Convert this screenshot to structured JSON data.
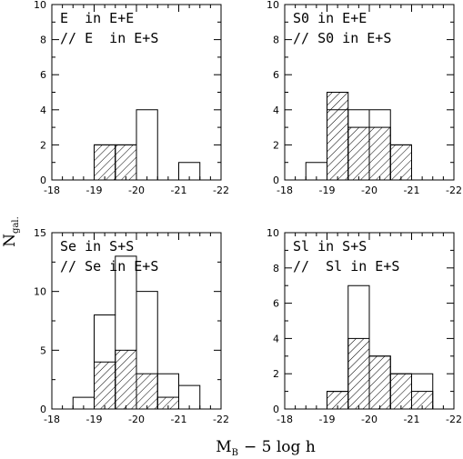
{
  "figure": {
    "ylabel_main": "N",
    "ylabel_sub": "gal.",
    "xlabel_main": "M",
    "xlabel_sub": "B",
    "xlabel_rest": "− 5 log h"
  },
  "chart_data": [
    {
      "type": "bar",
      "title": "",
      "label_lines": [
        "E  in E+E",
        "// E  in E+S"
      ],
      "xlim": [
        -18,
        -22
      ],
      "ylim": [
        0,
        10
      ],
      "xticks": [
        -18,
        -19,
        -20,
        -21,
        -22
      ],
      "yticks": [
        0,
        2,
        4,
        6,
        8,
        10
      ],
      "bin_edges": [
        -18.5,
        -19.0,
        -19.5,
        -20.0,
        -20.5,
        -21.0,
        -21.5
      ],
      "series": [
        {
          "name": "E in E+E",
          "style": "open",
          "values": [
            0,
            2,
            2,
            4,
            0,
            1
          ]
        },
        {
          "name": "E in E+S",
          "style": "hatched",
          "values": [
            0,
            2,
            2,
            0,
            0,
            0
          ]
        }
      ]
    },
    {
      "type": "bar",
      "title": "",
      "label_lines": [
        "S0 in E+E",
        "// S0 in E+S"
      ],
      "xlim": [
        -18,
        -22
      ],
      "ylim": [
        0,
        10
      ],
      "xticks": [
        -18,
        -19,
        -20,
        -21,
        -22
      ],
      "yticks": [
        0,
        2,
        4,
        6,
        8,
        10
      ],
      "bin_edges": [
        -18.5,
        -19.0,
        -19.5,
        -20.0,
        -20.5,
        -21.0
      ],
      "series": [
        {
          "name": "S0 in E+E",
          "style": "open",
          "values": [
            1,
            4,
            4,
            4,
            2
          ]
        },
        {
          "name": "S0 in E+S",
          "style": "hatched",
          "values": [
            0,
            5,
            3,
            3,
            2
          ]
        }
      ]
    },
    {
      "type": "bar",
      "title": "",
      "label_lines": [
        "Se in S+S",
        "// Se in E+S"
      ],
      "xlim": [
        -18,
        -22
      ],
      "ylim": [
        0,
        15
      ],
      "xticks": [
        -18,
        -19,
        -20,
        -21,
        -22
      ],
      "yticks": [
        0,
        5,
        10,
        15
      ],
      "bin_edges": [
        -18.0,
        -18.5,
        -19.0,
        -19.5,
        -20.0,
        -20.5,
        -21.0,
        -21.5
      ],
      "series": [
        {
          "name": "Se in S+S",
          "style": "open",
          "values": [
            0,
            1,
            8,
            13,
            10,
            3,
            2
          ]
        },
        {
          "name": "Se in E+S",
          "style": "hatched",
          "values": [
            0,
            0,
            4,
            5,
            3,
            1,
            0
          ]
        }
      ]
    },
    {
      "type": "bar",
      "title": "",
      "label_lines": [
        "Sl in S+S",
        "//  Sl in E+S"
      ],
      "xlim": [
        -18,
        -22
      ],
      "ylim": [
        0,
        10
      ],
      "xticks": [
        -18,
        -19,
        -20,
        -21,
        -22
      ],
      "yticks": [
        0,
        2,
        4,
        6,
        8,
        10
      ],
      "bin_edges": [
        -18.5,
        -19.0,
        -19.5,
        -20.0,
        -20.5,
        -21.0,
        -21.5
      ],
      "series": [
        {
          "name": "Sl in S+S",
          "style": "open",
          "values": [
            0,
            1,
            7,
            3,
            2,
            2
          ]
        },
        {
          "name": "Sl in E+S",
          "style": "hatched",
          "values": [
            0,
            1,
            4,
            3,
            2,
            1
          ]
        }
      ]
    }
  ]
}
